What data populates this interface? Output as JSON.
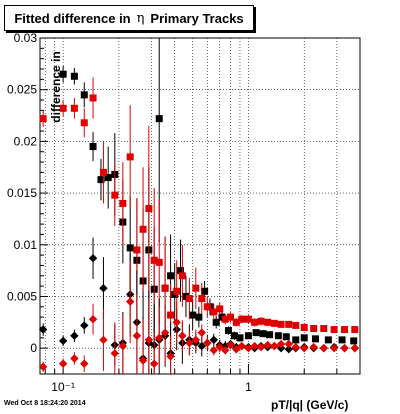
{
  "title": {
    "prefix": "Fitted difference in",
    "symbol": "η",
    "suffix": "Primary Tracks"
  },
  "timestamp": "Wed Oct  8 18:24:20 2014",
  "chart_data": {
    "type": "scatter",
    "xlabel": "pT/|q| (GeV/c)",
    "ylabel": "difference in",
    "xscale": "log",
    "xlim": [
      0.075,
      4.0
    ],
    "ylim": [
      -0.0025,
      0.03
    ],
    "grid": true,
    "x_ticks": [
      {
        "value": 0.1,
        "label": "10⁻¹"
      },
      {
        "value": 1,
        "label": "1"
      }
    ],
    "y_ticks": [
      {
        "value": 0,
        "label": "0"
      },
      {
        "value": 0.005,
        "label": "0.005"
      },
      {
        "value": 0.01,
        "label": "0.01"
      },
      {
        "value": 0.015,
        "label": "0.015"
      },
      {
        "value": 0.02,
        "label": "0.02"
      },
      {
        "value": 0.025,
        "label": "0.025"
      },
      {
        "value": 0.03,
        "label": "0.03"
      }
    ],
    "series": [
      {
        "marker": "square",
        "color": "#000000",
        "points": [
          [
            0.1,
            0.0265,
            0.0008
          ],
          [
            0.115,
            0.0263,
            0.0008
          ],
          [
            0.13,
            0.0245,
            0.0012
          ],
          [
            0.145,
            0.0195,
            0.0014
          ],
          [
            0.16,
            0.0163,
            0.002
          ],
          [
            0.175,
            0.0165,
            0.003
          ],
          [
            0.19,
            0.0168,
            0.004
          ],
          [
            0.21,
            0.0122,
            0.004
          ],
          [
            0.23,
            0.0097,
            0.005
          ],
          [
            0.25,
            0.0085,
            0.006
          ],
          [
            0.27,
            0.0065,
            0.007
          ],
          [
            0.29,
            0.0095,
            0.008
          ],
          [
            0.31,
            0.0057,
            0.006
          ],
          [
            0.33,
            0.0222,
            0.012
          ],
          [
            0.355,
            0.0058,
            0.005
          ],
          [
            0.38,
            0.007,
            0.004
          ],
          [
            0.4,
            0.0052,
            0.003
          ],
          [
            0.43,
            0.0075,
            0.003
          ],
          [
            0.46,
            0.005,
            0.002
          ],
          [
            0.5,
            0.0032,
            0.0015
          ],
          [
            0.54,
            0.003,
            0.001
          ],
          [
            0.58,
            0.0055,
            0.001
          ],
          [
            0.62,
            0.004,
            0.0008
          ],
          [
            0.67,
            0.0025,
            0.0006
          ],
          [
            0.72,
            0.003,
            0.0005
          ],
          [
            0.78,
            0.0017,
            0.0004
          ],
          [
            0.84,
            0.0012,
            0.0004
          ],
          [
            0.9,
            0.001,
            0.0003
          ],
          [
            1.0,
            0.0012,
            0.0003
          ],
          [
            1.1,
            0.0015,
            0.0003
          ],
          [
            1.2,
            0.0014,
            0.0003
          ],
          [
            1.3,
            0.0013,
            0.0003
          ],
          [
            1.45,
            0.0012,
            0.0003
          ],
          [
            1.6,
            0.0011,
            0.0003
          ],
          [
            1.8,
            0.0008,
            0.0003
          ],
          [
            2.0,
            0.001,
            0.0003
          ],
          [
            2.3,
            0.0009,
            0.0003
          ],
          [
            2.7,
            0.0008,
            0.0003
          ],
          [
            3.2,
            0.0008,
            0.0003
          ],
          [
            3.7,
            0.0007,
            0.0003
          ]
        ]
      },
      {
        "marker": "square",
        "color": "#e00000",
        "points": [
          [
            0.078,
            0.0222,
            0.0008
          ],
          [
            0.1,
            0.0232,
            0.0008
          ],
          [
            0.115,
            0.0232,
            0.001
          ],
          [
            0.13,
            0.0218,
            0.0014
          ],
          [
            0.145,
            0.0242,
            0.002
          ],
          [
            0.165,
            0.017,
            0.003
          ],
          [
            0.19,
            0.0148,
            0.003
          ],
          [
            0.21,
            0.014,
            0.004
          ],
          [
            0.23,
            0.0185,
            0.005
          ],
          [
            0.25,
            0.0095,
            0.005
          ],
          [
            0.27,
            0.0115,
            0.006
          ],
          [
            0.29,
            0.0135,
            0.008
          ],
          [
            0.31,
            0.0085,
            0.007
          ],
          [
            0.33,
            0.0083,
            0.006
          ],
          [
            0.355,
            0.0058,
            0.005
          ],
          [
            0.38,
            0.0032,
            0.003
          ],
          [
            0.41,
            0.0055,
            0.003
          ],
          [
            0.44,
            0.007,
            0.003
          ],
          [
            0.48,
            0.0048,
            0.002
          ],
          [
            0.52,
            0.0058,
            0.002
          ],
          [
            0.56,
            0.0048,
            0.0015
          ],
          [
            0.6,
            0.004,
            0.001
          ],
          [
            0.65,
            0.0035,
            0.0008
          ],
          [
            0.7,
            0.0038,
            0.0006
          ],
          [
            0.75,
            0.0028,
            0.0005
          ],
          [
            0.8,
            0.003,
            0.0005
          ],
          [
            0.86,
            0.0025,
            0.0004
          ],
          [
            0.92,
            0.0028,
            0.0004
          ],
          [
            1.0,
            0.0028,
            0.0004
          ],
          [
            1.08,
            0.0025,
            0.0004
          ],
          [
            1.17,
            0.0026,
            0.0004
          ],
          [
            1.27,
            0.0025,
            0.0003
          ],
          [
            1.38,
            0.0024,
            0.0003
          ],
          [
            1.5,
            0.0023,
            0.0003
          ],
          [
            1.65,
            0.0023,
            0.0003
          ],
          [
            1.8,
            0.0022,
            0.0003
          ],
          [
            2.0,
            0.002,
            0.0003
          ],
          [
            2.25,
            0.0019,
            0.0003
          ],
          [
            2.55,
            0.0019,
            0.0003
          ],
          [
            2.9,
            0.0018,
            0.0003
          ],
          [
            3.3,
            0.0018,
            0.0003
          ],
          [
            3.75,
            0.0018,
            0.0003
          ]
        ]
      },
      {
        "marker": "diamond",
        "color": "#000000",
        "points": [
          [
            0.078,
            0.0018,
            0.0006
          ],
          [
            0.1,
            0.0007,
            0.0005
          ],
          [
            0.115,
            0.0012,
            0.0006
          ],
          [
            0.13,
            0.0022,
            0.0008
          ],
          [
            0.145,
            0.0087,
            0.002
          ],
          [
            0.165,
            0.0058,
            0.003
          ],
          [
            0.19,
            0.0003,
            0.002
          ],
          [
            0.21,
            0.0005,
            0.003
          ],
          [
            0.23,
            0.0052,
            0.004
          ],
          [
            0.25,
            0.0025,
            0.005
          ],
          [
            0.27,
            -0.001,
            0.004
          ],
          [
            0.29,
            0.0005,
            0.005
          ],
          [
            0.31,
            0.0003,
            0.004
          ],
          [
            0.33,
            0.0008,
            0.004
          ],
          [
            0.355,
            0.0012,
            0.003
          ],
          [
            0.38,
            -0.0005,
            0.003
          ],
          [
            0.41,
            0.0018,
            0.002
          ],
          [
            0.44,
            0.0005,
            0.002
          ],
          [
            0.48,
            0.0008,
            0.0015
          ],
          [
            0.52,
            0.0005,
            0.001
          ],
          [
            0.56,
            0.0002,
            0.001
          ],
          [
            0.6,
            0.0005,
            0.0008
          ],
          [
            0.65,
            0.0008,
            0.0006
          ],
          [
            0.7,
            0.0003,
            0.0005
          ],
          [
            0.75,
            0.0002,
            0.0005
          ],
          [
            0.8,
            0.0004,
            0.0004
          ],
          [
            0.86,
            0.0001,
            0.0004
          ],
          [
            0.92,
            0.0002,
            0.0003
          ],
          [
            1.0,
            0.0001,
            0.0003
          ],
          [
            1.08,
            0.0,
            0.0003
          ],
          [
            1.17,
            0.0002,
            0.0003
          ],
          [
            1.27,
            0.0001,
            0.0003
          ],
          [
            1.38,
            0.0002,
            0.0003
          ],
          [
            1.5,
            0.0,
            0.0003
          ],
          [
            1.65,
            -0.0001,
            0.0003
          ],
          [
            1.8,
            0.0,
            0.0003
          ],
          [
            2.0,
            0.0001,
            0.0003
          ],
          [
            2.25,
            0.0,
            0.0003
          ],
          [
            2.55,
            0.0,
            0.0003
          ],
          [
            2.9,
            0.0001,
            0.0003
          ],
          [
            3.3,
            0.0,
            0.0003
          ],
          [
            3.75,
            0.0,
            0.0003
          ]
        ]
      },
      {
        "marker": "diamond",
        "color": "#e00000",
        "points": [
          [
            0.078,
            -0.0018,
            0.0005
          ],
          [
            0.1,
            -0.0015,
            0.0005
          ],
          [
            0.115,
            -0.001,
            0.0006
          ],
          [
            0.13,
            -0.0015,
            0.0008
          ],
          [
            0.145,
            0.0028,
            0.0015
          ],
          [
            0.165,
            0.0008,
            0.003
          ],
          [
            0.19,
            -0.0005,
            0.003
          ],
          [
            0.21,
            0.0002,
            0.003
          ],
          [
            0.23,
            0.0045,
            0.004
          ],
          [
            0.25,
            0.0012,
            0.004
          ],
          [
            0.27,
            -0.0012,
            0.004
          ],
          [
            0.29,
            0.0008,
            0.004
          ],
          [
            0.31,
            -0.0015,
            0.003
          ],
          [
            0.33,
            0.001,
            0.003
          ],
          [
            0.355,
            0.0015,
            0.003
          ],
          [
            0.38,
            -0.0008,
            0.002
          ],
          [
            0.41,
            0.0025,
            0.002
          ],
          [
            0.44,
            0.0012,
            0.0015
          ],
          [
            0.48,
            0.0005,
            0.0012
          ],
          [
            0.52,
            0.0008,
            0.001
          ],
          [
            0.56,
            0.0015,
            0.0008
          ],
          [
            0.6,
            0.0005,
            0.0006
          ],
          [
            0.65,
            -0.0002,
            0.0005
          ],
          [
            0.7,
            0.0001,
            0.0005
          ],
          [
            0.75,
            -0.0002,
            0.0004
          ],
          [
            0.8,
            0.0003,
            0.0004
          ],
          [
            0.86,
            -0.0001,
            0.0004
          ],
          [
            0.92,
            0.0002,
            0.0003
          ],
          [
            1.0,
            0.0,
            0.0003
          ],
          [
            1.08,
            0.0002,
            0.0003
          ],
          [
            1.17,
            0.0001,
            0.0003
          ],
          [
            1.27,
            0.0003,
            0.0003
          ],
          [
            1.38,
            0.0002,
            0.0003
          ],
          [
            1.5,
            0.0004,
            0.0003
          ],
          [
            1.65,
            0.0004,
            0.0003
          ],
          [
            1.8,
            0.0001,
            0.0003
          ],
          [
            2.0,
            0.0,
            0.0003
          ],
          [
            2.25,
            0.0001,
            0.0003
          ],
          [
            2.55,
            0.0,
            0.0003
          ],
          [
            2.9,
            0.0,
            0.0003
          ],
          [
            3.3,
            0.0,
            0.0003
          ],
          [
            3.75,
            0.0,
            0.0003
          ]
        ]
      }
    ]
  }
}
